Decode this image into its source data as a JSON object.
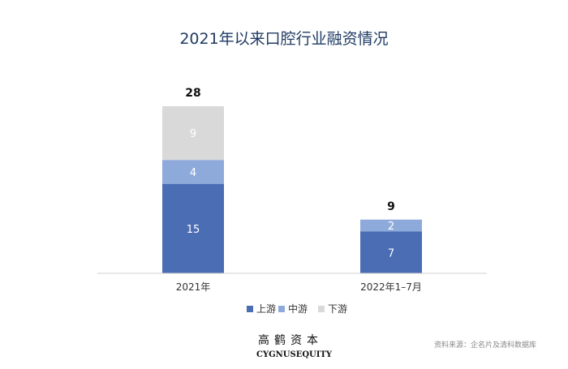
{
  "chart_data": {
    "type": "bar",
    "stacked": true,
    "title": "2021年以来口腔行业融资情况",
    "categories": [
      "2021年",
      "2022年1–7月"
    ],
    "series": [
      {
        "name": "上游",
        "values": [
          15,
          7
        ],
        "color": "#4a6db3"
      },
      {
        "name": "中游",
        "values": [
          4,
          2
        ],
        "color": "#8eaadb"
      },
      {
        "name": "下游",
        "values": [
          9,
          0
        ],
        "color": "#d9d9d9"
      }
    ],
    "totals": [
      28,
      9
    ],
    "ylim": [
      0,
      28
    ],
    "grid": false,
    "legend_position": "bottom"
  },
  "footer": {
    "logo_cn": "高鹤资本",
    "logo_en": "CYGNUSEQUITY",
    "source": "资料来源：企名片及清科数据库"
  }
}
